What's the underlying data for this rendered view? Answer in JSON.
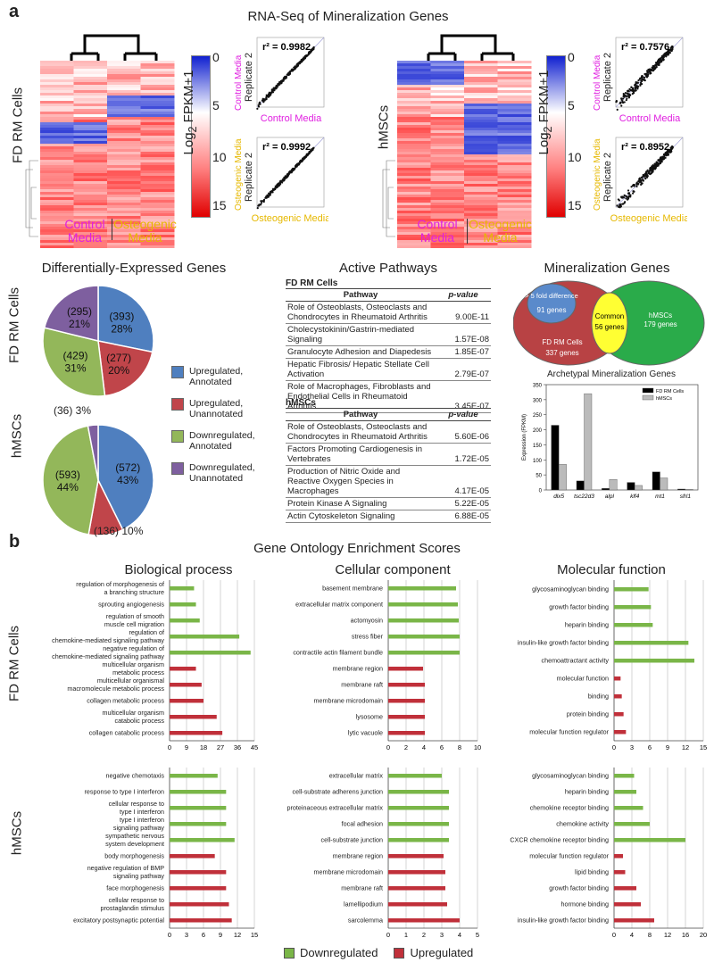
{
  "panel_a": {
    "letter": "a",
    "title": "RNA-Seq of Mineralization Genes",
    "fd_heatmap": {
      "row_label": "FD RM Cells",
      "col_labels": [
        [
          "Control",
          "Media"
        ],
        [
          "Osteogenic",
          "Media"
        ]
      ],
      "colorbar_label": "Log",
      "colorbar_sub": "2",
      "colorbar_label2": " FPKM+1",
      "colorbar_ticks": [
        "0",
        "5",
        "10",
        "15"
      ]
    },
    "hmsc_heatmap": {
      "row_label": "hMSCs",
      "col_labels": [
        [
          "Control",
          "Media"
        ],
        [
          "Osteogenic",
          "Media"
        ]
      ],
      "colorbar_label": "Log",
      "colorbar_sub": "2",
      "colorbar_label2": " FPKM+1",
      "colorbar_ticks": [
        "0",
        "5",
        "10",
        "15"
      ]
    },
    "scatter_plots": [
      {
        "r2": "r² = 0.9982",
        "ylabel_top": "Control Media",
        "ylabel": "Replicate 2",
        "xlabel": "Control Media"
      },
      {
        "r2": "r² = 0.9992",
        "ylabel_top": "Osteogenic Media",
        "ylabel": "Replicate 2",
        "xlabel": "Osteogenic Media"
      },
      {
        "r2": "r² = 0.7576",
        "ylabel_top": "Control Media",
        "ylabel": "Replicate 2",
        "xlabel": "Control Media"
      },
      {
        "r2": "r² = 0.8952",
        "ylabel_top": "Osteogenic Media",
        "ylabel": "Replicate 2",
        "xlabel": "Osteogenic Media"
      }
    ]
  },
  "deg": {
    "title": "Differentially-Expressed Genes",
    "fd_label": "FD RM Cells",
    "hmsc_label": "hMSCs",
    "fd_pie": [
      {
        "count": "(393)",
        "pct": "28%",
        "value": 393,
        "color": "#4f7fbf"
      },
      {
        "count": "(277)",
        "pct": "20%",
        "value": 277,
        "color": "#c0454a"
      },
      {
        "count": "(429)",
        "pct": "31%",
        "value": 429,
        "color": "#93b75a"
      },
      {
        "count": "(295)",
        "pct": "21%",
        "value": 295,
        "color": "#7e5f9f"
      }
    ],
    "fd_outside": "(36) 3%",
    "hmsc_pie": [
      {
        "count": "(572)",
        "pct": "43%",
        "value": 572,
        "color": "#4f7fbf"
      },
      {
        "count": "(136)",
        "pct": "10%",
        "value": 136,
        "color": "#c0454a"
      },
      {
        "count": "(593)",
        "pct": "44%",
        "value": 593,
        "color": "#93b75a"
      },
      {
        "count": "",
        "pct": "",
        "value": 40,
        "color": "#7e5f9f"
      }
    ],
    "hmsc_outside": "(136) 10%",
    "legend": [
      {
        "line1": "Upregulated,",
        "line2": "Annotated",
        "color": "#4f7fbf"
      },
      {
        "line1": "Upregulated,",
        "line2": "Unannotated",
        "color": "#c0454a"
      },
      {
        "line1": "Downregulated,",
        "line2": "Annotated",
        "color": "#93b75a"
      },
      {
        "line1": "Downregulated,",
        "line2": "Unannotated",
        "color": "#7e5f9f"
      }
    ]
  },
  "pathways": {
    "title": "Active Pathways",
    "fd_section": "FD RM Cells",
    "hmsc_section": "hMSCs",
    "col_pathway": "Pathway",
    "col_pvalue": "p-value",
    "fd_rows": [
      {
        "name": "Role of Osteoblasts, Osteoclasts and Chondrocytes in Rheumatoid Arthritis",
        "p": "9.00E-11"
      },
      {
        "name": "Cholecystokinin/Gastrin-mediated Signaling",
        "p": "1.57E-08"
      },
      {
        "name": "Granulocyte Adhesion and Diapedesis",
        "p": "1.85E-07"
      },
      {
        "name": "Hepatic Fibrosis/ Hepatic Stellate Cell Activation",
        "p": "2.79E-07"
      },
      {
        "name": "Role of Macrophages, Fibroblasts and Endothelial Cells in Rheumatoid Arthritis",
        "p": "3.45E-07"
      }
    ],
    "hmsc_rows": [
      {
        "name": "Role of Osteoblasts, Osteoclasts and Chondrocytes in Rheumatoid Arthritis",
        "p": "5.60E-06"
      },
      {
        "name": "Factors Promoting Cardiogenesis in Vertebrates",
        "p": "1.72E-05"
      },
      {
        "name": "Production of Nitric Oxide and Reactive Oxygen Species in Macrophages",
        "p": "4.17E-05"
      },
      {
        "name": "Protein Kinase A Signaling",
        "p": "5.22E-05"
      },
      {
        "name": "Actin Cytoskeleton Signaling",
        "p": "6.88E-05"
      }
    ]
  },
  "mineral": {
    "title": "Mineralization Genes",
    "venn_fold": "> 5 fold difference",
    "venn_fold_genes": "91 genes",
    "venn_common": "Common",
    "venn_common_genes": "56 genes",
    "venn_hmsc": "hMSCs",
    "venn_hmsc_genes": "179 genes",
    "venn_fd": "FD RM Cells",
    "venn_fd_genes": "337 genes",
    "bar_title": "Archetypal Mineralization Genes"
  },
  "panel_b": {
    "letter": "b",
    "title": "Gene Ontology Enrichment Scores",
    "row_labels": [
      "FD RM Cells",
      "hMSCs"
    ],
    "col_titles": [
      "Biological process",
      "Cellular component",
      "Molecular function"
    ],
    "legend": [
      {
        "label": "Downregulated",
        "color": "#7ab648"
      },
      {
        "label": "Upregulated",
        "color": "#c0303a"
      }
    ]
  },
  "chart_data": [
    {
      "type": "bar",
      "title": "Archetypal Mineralization Genes",
      "categories": [
        "dlx5",
        "tsc22d3",
        "alpl",
        "klf4",
        "mt1",
        "sfrl1"
      ],
      "series": [
        {
          "name": "FD RM Cells",
          "color": "#000000",
          "values": [
            215,
            30,
            5,
            25,
            60,
            3
          ]
        },
        {
          "name": "hMSCs",
          "color": "#bbbbbb",
          "values": [
            85,
            320,
            35,
            15,
            40,
            2
          ]
        }
      ],
      "ylabel": "Expression (FPKM)",
      "yticks": [
        0,
        50,
        100,
        150,
        200,
        250,
        300,
        350
      ],
      "ylim": [
        0,
        350
      ],
      "legend": "top-right"
    },
    {
      "type": "bar",
      "orientation": "horizontal",
      "panel": "FD RM Cells - Biological process",
      "categories": [
        "regulation of morphogenesis of a branching structure",
        "sprouting angiogenesis",
        "regulation of smooth muscle cell migration",
        "regulation of chemokine-mediated signaling pathway",
        "negative regulation of chemokine-mediated signaling pathway",
        "multicellular organism metabolic process",
        "multicellular organismal macromolecule metabolic process",
        "collagen metabolic process",
        "multicellular organism catabolic process",
        "collagen catabolic process"
      ],
      "values": [
        13,
        14,
        16,
        37,
        43,
        14,
        17,
        18,
        25,
        28
      ],
      "colors": [
        "d",
        "d",
        "d",
        "d",
        "d",
        "u",
        "u",
        "u",
        "u",
        "u"
      ],
      "xticks": [
        0,
        9,
        18,
        27,
        36,
        45
      ],
      "xlim": [
        0,
        45
      ]
    },
    {
      "type": "bar",
      "orientation": "horizontal",
      "panel": "FD RM Cells - Cellular component",
      "categories": [
        "basement membrane",
        "extracellular matrix component",
        "actomyosin",
        "stress fiber",
        "contractile actin filament bundle",
        "membrane region",
        "membrane raft",
        "membrane microdomain",
        "lysosome",
        "lytic vacuole"
      ],
      "values": [
        7.6,
        7.8,
        7.9,
        8.0,
        8.0,
        3.9,
        4.1,
        4.1,
        4.1,
        4.1
      ],
      "colors": [
        "d",
        "d",
        "d",
        "d",
        "d",
        "u",
        "u",
        "u",
        "u",
        "u"
      ],
      "xticks": [
        0,
        2,
        4,
        6,
        8,
        10
      ],
      "xlim": [
        0,
        10
      ]
    },
    {
      "type": "bar",
      "orientation": "horizontal",
      "panel": "FD RM Cells - Molecular function",
      "categories": [
        "glycosaminoglycan binding",
        "growth factor binding",
        "heparin binding",
        "insulin-like growth factor binding",
        "chemoattractant activity",
        "molecular function",
        "binding",
        "protein binding",
        "molecular function regulator"
      ],
      "values": [
        5.8,
        6.2,
        6.5,
        12.5,
        13.5,
        1.1,
        1.3,
        1.6,
        2.0
      ],
      "colors": [
        "d",
        "d",
        "d",
        "d",
        "d",
        "u",
        "u",
        "u",
        "u"
      ],
      "xticks": [
        0,
        3,
        6,
        9,
        12,
        15
      ],
      "xlim": [
        0,
        15
      ]
    },
    {
      "type": "bar",
      "orientation": "horizontal",
      "panel": "hMSCs - Biological process",
      "categories": [
        "negative chemotaxis",
        "response to type I interferon",
        "cellular response to type I interferon",
        "type I interferon signaling pathway",
        "sympathetic nervous system development",
        "body morphogenesis",
        "negative regulation of BMP signaling pathway",
        "face morphogenesis",
        "cellular response to prostaglandin stimulus",
        "excitatory postsynaptic potential"
      ],
      "values": [
        8.5,
        10,
        10,
        10,
        11.5,
        8,
        10,
        10,
        10.5,
        11
      ],
      "colors": [
        "d",
        "d",
        "d",
        "d",
        "d",
        "u",
        "u",
        "u",
        "u",
        "u"
      ],
      "xticks": [
        0,
        3,
        6,
        9,
        12,
        15
      ],
      "xlim": [
        0,
        15
      ]
    },
    {
      "type": "bar",
      "orientation": "horizontal",
      "panel": "hMSCs - Cellular component",
      "categories": [
        "extracellular matrix",
        "cell-substrate adherens junction",
        "proteinaceous extracellular matrix",
        "focal adhesion",
        "cell-substrate junction",
        "membrane region",
        "membrane microdomain",
        "membrane raft",
        "lamellipodium",
        "sarcolemma"
      ],
      "values": [
        3.0,
        3.4,
        3.4,
        3.4,
        3.4,
        3.1,
        3.2,
        3.2,
        3.3,
        4.0
      ],
      "colors": [
        "d",
        "d",
        "d",
        "d",
        "d",
        "u",
        "u",
        "u",
        "u",
        "u"
      ],
      "xticks": [
        0,
        1,
        2,
        3,
        4,
        5
      ],
      "xlim": [
        0,
        5
      ]
    },
    {
      "type": "bar",
      "orientation": "horizontal",
      "panel": "hMSCs - Molecular function",
      "categories": [
        "glycosaminoglycan binding",
        "heparin binding",
        "chemokine receptor binding",
        "chemokine activity",
        "CXCR chemokine receptor binding",
        "molecular function regulator",
        "lipid binding",
        "growth factor binding",
        "hormone binding",
        "insulin-like growth factor binding"
      ],
      "values": [
        4.5,
        5,
        6.5,
        8,
        16,
        2,
        2.5,
        5,
        6,
        9
      ],
      "colors": [
        "d",
        "d",
        "d",
        "d",
        "d",
        "u",
        "u",
        "u",
        "u",
        "u"
      ],
      "xticks": [
        0,
        4,
        8,
        12,
        16,
        20
      ],
      "xlim": [
        0,
        20
      ]
    }
  ]
}
